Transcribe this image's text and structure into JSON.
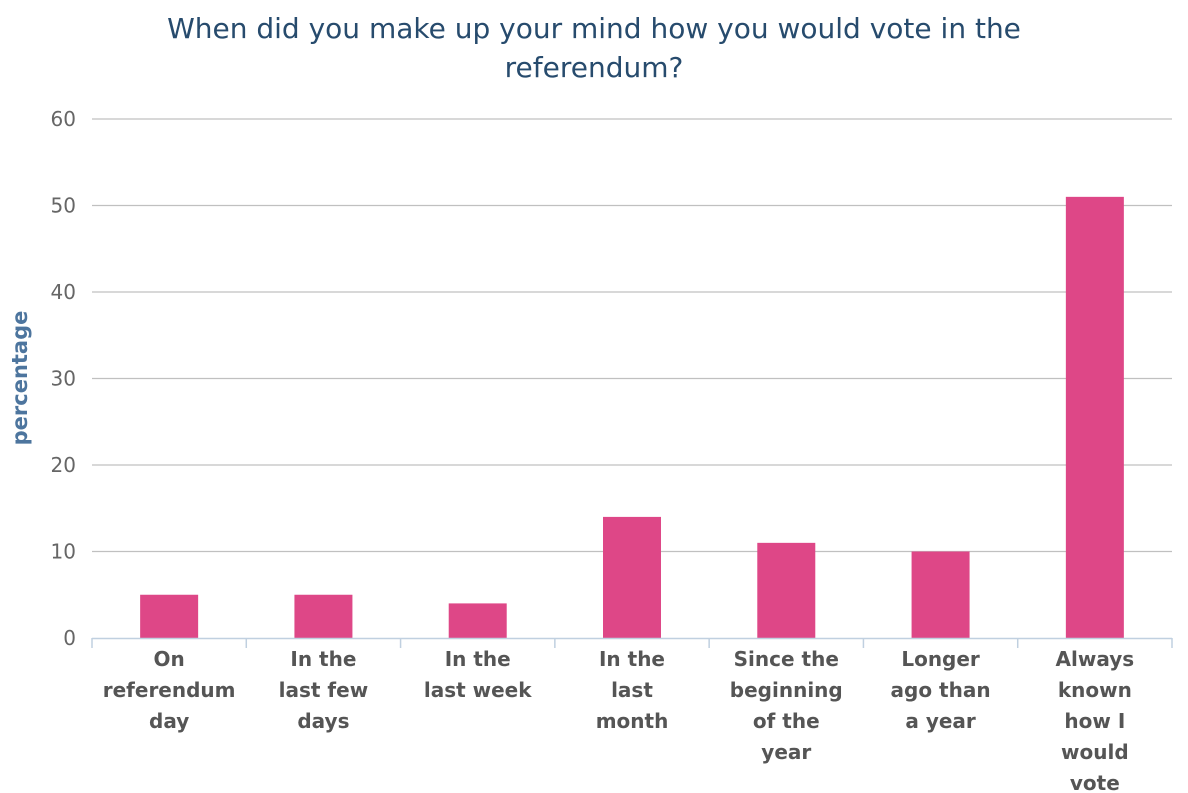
{
  "chart_data": {
    "type": "bar",
    "title": "When did you make up your mind how you would vote in the referendum?",
    "title_lines": [
      "When did you make up your mind how you would vote in the",
      "referendum?"
    ],
    "xlabel": "",
    "ylabel": "percentage",
    "ylim": [
      0,
      60
    ],
    "yticks": [
      0,
      10,
      20,
      30,
      40,
      50,
      60
    ],
    "grid": true,
    "legend": "none",
    "categories": [
      "On referendum day",
      "In the last few days",
      "In the last week",
      "In the last month",
      "Since the beginning of the year",
      "Longer ago than a year",
      "Always known how I would vote"
    ],
    "category_label_lines": [
      [
        "On",
        "referendum",
        "day"
      ],
      [
        "In the",
        "last few",
        "days"
      ],
      [
        "In the",
        "last week"
      ],
      [
        "In the",
        "last",
        "month"
      ],
      [
        "Since the",
        "beginning",
        "of the",
        "year"
      ],
      [
        "Longer",
        "ago than",
        "a year"
      ],
      [
        "Always",
        "known",
        "how I",
        "would",
        "vote"
      ]
    ],
    "series": [
      {
        "values": [
          5,
          5,
          4,
          14,
          11,
          10,
          51
        ],
        "color": "#de4787"
      }
    ],
    "colors": {
      "title": "#274b6d",
      "ylabel": "#4d759e",
      "tick_text": "#666666",
      "category_text": "#555555",
      "grid": "#c0c0c0",
      "axis": "#c0d0e0",
      "bar": "#de4787"
    }
  }
}
